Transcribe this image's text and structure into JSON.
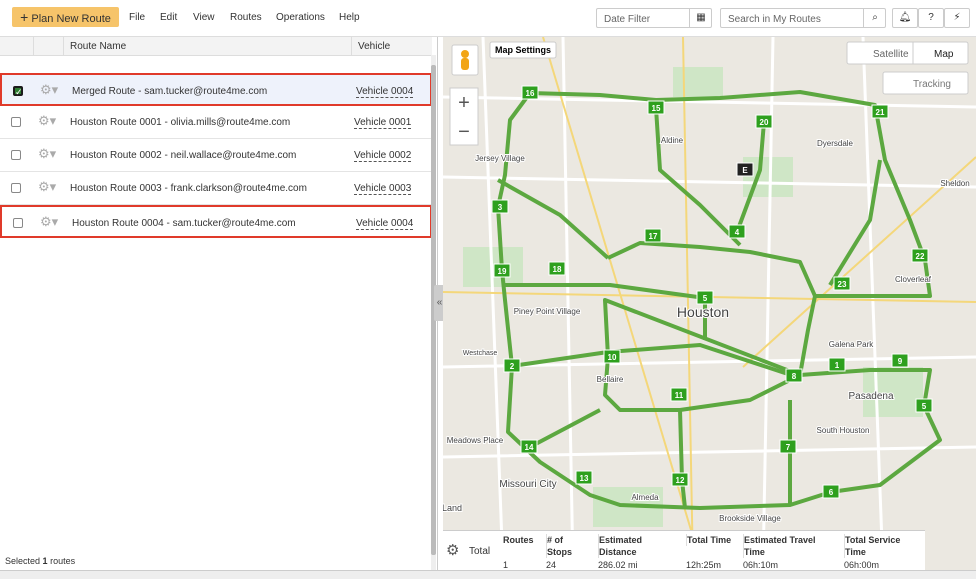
{
  "toolbar": {
    "plan_button": "Plan New Route",
    "menu": [
      "File",
      "Edit",
      "View",
      "Routes",
      "Operations",
      "Help"
    ],
    "date_filter": "Date Filter",
    "search": "Search in My Routes"
  },
  "table": {
    "headers": [
      "Route Name",
      "Vehicle"
    ],
    "rows": [
      {
        "name": "Merged Route - sam.tucker@route4me.com",
        "vehicle": "Vehicle 0004",
        "checked": true,
        "highlighted": true
      },
      {
        "name": "Houston Route 0001 - olivia.mills@route4me.com",
        "vehicle": "Vehicle 0001",
        "checked": false,
        "highlighted": false
      },
      {
        "name": "Houston Route 0002 - neil.wallace@route4me.com",
        "vehicle": "Vehicle 0002",
        "checked": false,
        "highlighted": false
      },
      {
        "name": "Houston Route 0003 - frank.clarkson@route4me.com",
        "vehicle": "Vehicle 0003",
        "checked": false,
        "highlighted": false
      },
      {
        "name": "Houston Route 0004 - sam.tucker@route4me.com",
        "vehicle": "Vehicle 0004",
        "checked": false,
        "highlighted": true
      }
    ]
  },
  "footer": {
    "selected_prefix": "Selected",
    "selected_count": 1,
    "selected_suffix": "routes"
  },
  "map": {
    "map_settings": "Map Settings",
    "satellite": "Satellite",
    "map": "Map",
    "tracking": "Tracking",
    "places": [
      "Houston",
      "Pasadena",
      "Missouri City",
      "Jersey Village",
      "Aldine",
      "Dyersdale",
      "Sheldon",
      "Cloverleaf",
      "Galena Park",
      "South Houston",
      "Bellaire",
      "Piney Point Village",
      "Meadows Place",
      "Almeda",
      "Brookside Village",
      "Westchase",
      "Land"
    ],
    "stops": [
      "16",
      "15",
      "20",
      "21",
      "E",
      "3",
      "4",
      "17",
      "19",
      "18",
      "22",
      "23",
      "5",
      "10",
      "1",
      "9",
      "2",
      "8",
      "11",
      "5",
      "7",
      "14",
      "13",
      "12",
      "6"
    ]
  },
  "summary": {
    "total": "Total",
    "headers": [
      "Routes",
      "# of Stops",
      "Estimated Distance",
      "Total Time",
      "Estimated Travel Time",
      "Total Service Time"
    ],
    "values": [
      1,
      24,
      "286.02 mi",
      "12h:25m",
      "06h:10m",
      "06h:00m"
    ]
  }
}
